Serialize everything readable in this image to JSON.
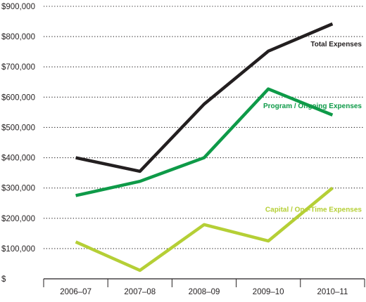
{
  "chart_data": {
    "type": "line",
    "title": "",
    "xlabel": "",
    "ylabel": "",
    "categories": [
      "2006–07",
      "2007–08",
      "2008–09",
      "2009–10",
      "2010–11"
    ],
    "ylim": [
      0,
      900000
    ],
    "y_ticks": [
      {
        "value": 0,
        "label": "$"
      },
      {
        "value": 100000,
        "label": "$100,000"
      },
      {
        "value": 200000,
        "label": "$200,000"
      },
      {
        "value": 300000,
        "label": "$300,000"
      },
      {
        "value": 400000,
        "label": "$400,000"
      },
      {
        "value": 500000,
        "label": "$500,000"
      },
      {
        "value": 600000,
        "label": "$600,000"
      },
      {
        "value": 700000,
        "label": "$700,000"
      },
      {
        "value": 800000,
        "label": "$800,000"
      },
      {
        "value": 900000,
        "label": "$900,000"
      }
    ],
    "grid": "horizontal dotted",
    "legend": "inline labels near line ends",
    "series": [
      {
        "name": "Total Expenses",
        "color": "#231f20",
        "values": [
          400000,
          355000,
          577000,
          752000,
          842000
        ]
      },
      {
        "name": "Program / Ongoing Expenses",
        "color": "#0e9a48",
        "values": [
          275000,
          322000,
          400000,
          627000,
          541000
        ]
      },
      {
        "name": "Capital / One-Time Expenses",
        "color": "#b5cf36",
        "values": [
          122000,
          28000,
          179000,
          125000,
          300000
        ]
      }
    ]
  }
}
